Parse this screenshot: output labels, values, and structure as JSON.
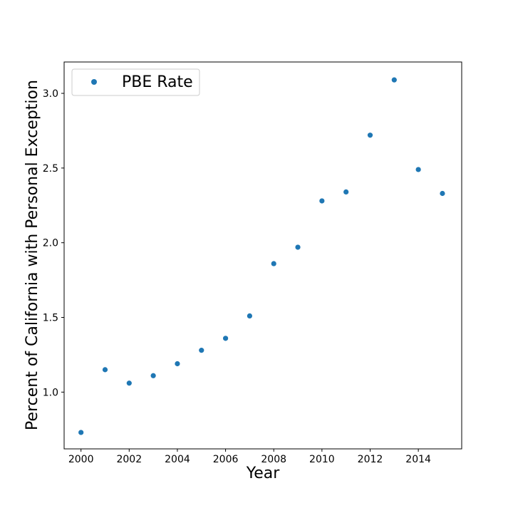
{
  "chart_data": {
    "type": "scatter",
    "title": "",
    "xlabel": "Year",
    "ylabel": "Percent of California with Personal Exception",
    "xlim": [
      1999.3,
      2015.8
    ],
    "ylim": [
      0.62,
      3.21
    ],
    "x_ticks": [
      2000,
      2002,
      2004,
      2006,
      2008,
      2010,
      2012,
      2014
    ],
    "x_tick_labels": [
      "2000",
      "2002",
      "2004",
      "2006",
      "2008",
      "2010",
      "2012",
      "2014"
    ],
    "y_ticks": [
      1.0,
      1.5,
      2.0,
      2.5,
      3.0
    ],
    "y_tick_labels": [
      "1.0",
      "1.5",
      "2.0",
      "2.5",
      "3.0"
    ],
    "grid": false,
    "legend": {
      "position": "top-left",
      "entries": [
        "PBE Rate"
      ]
    },
    "series": [
      {
        "name": "PBE Rate",
        "color": "#1f77b4",
        "x": [
          2000,
          2001,
          2002,
          2003,
          2004,
          2005,
          2006,
          2007,
          2008,
          2009,
          2010,
          2011,
          2012,
          2013,
          2014,
          2015
        ],
        "y": [
          0.73,
          1.15,
          1.06,
          1.11,
          1.19,
          1.28,
          1.36,
          1.51,
          1.86,
          1.97,
          2.28,
          2.34,
          2.72,
          3.09,
          2.49,
          2.33
        ]
      }
    ]
  }
}
